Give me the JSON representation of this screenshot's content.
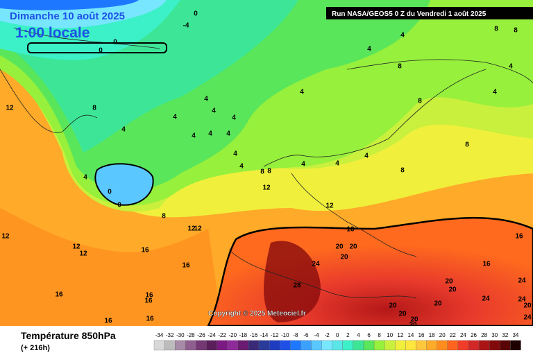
{
  "header": {
    "date": "Dimanche 10 août 2025",
    "time": "1:00 locale",
    "run": "Run NASA/GEOS5 0 Z du Vendredi 1 août 2025"
  },
  "copyright": "Copyright © 2025 Meteociel.fr",
  "footer": {
    "title": "Température 850hPa",
    "lead": "(+ 216h)"
  },
  "scale": [
    {
      "value": -34,
      "color": "#d8d8d8"
    },
    {
      "value": -32,
      "color": "#bcbcbc"
    },
    {
      "value": -30,
      "color": "#a78aa7"
    },
    {
      "value": -28,
      "color": "#8e5e8e"
    },
    {
      "value": -26,
      "color": "#743874"
    },
    {
      "value": -24,
      "color": "#5a1e5a"
    },
    {
      "value": -22,
      "color": "#7a1a82"
    },
    {
      "value": -20,
      "color": "#8e2a9a"
    },
    {
      "value": -18,
      "color": "#6a1a70"
    },
    {
      "value": -16,
      "color": "#3a2a78"
    },
    {
      "value": -14,
      "color": "#2a3a9a"
    },
    {
      "value": -12,
      "color": "#1e3cc0"
    },
    {
      "value": -10,
      "color": "#1e50e6"
    },
    {
      "value": -8,
      "color": "#1e78ff"
    },
    {
      "value": -6,
      "color": "#3ca0ff"
    },
    {
      "value": -4,
      "color": "#5ac8ff"
    },
    {
      "value": -2,
      "color": "#78e6ff"
    },
    {
      "value": 0,
      "color": "#5ae6e6"
    },
    {
      "value": 2,
      "color": "#3cf0c8"
    },
    {
      "value": 4,
      "color": "#3ce696"
    },
    {
      "value": 6,
      "color": "#5ae65a"
    },
    {
      "value": 8,
      "color": "#96f03c"
    },
    {
      "value": 10,
      "color": "#c8f03c"
    },
    {
      "value": 12,
      "color": "#f0f03c"
    },
    {
      "value": 14,
      "color": "#ffe63c"
    },
    {
      "value": 16,
      "color": "#ffc83c"
    },
    {
      "value": 18,
      "color": "#ffaa28"
    },
    {
      "value": 20,
      "color": "#ff8c1e"
    },
    {
      "value": 22,
      "color": "#ff641e"
    },
    {
      "value": 24,
      "color": "#f03c28"
    },
    {
      "value": 26,
      "color": "#d22828"
    },
    {
      "value": 28,
      "color": "#aa1414"
    },
    {
      "value": 30,
      "color": "#820a0a"
    },
    {
      "value": 32,
      "color": "#5a0505"
    },
    {
      "value": 34,
      "color": "#1e0000"
    }
  ],
  "map": {
    "contour_labels": [
      0,
      -4,
      0,
      0,
      8,
      8,
      4,
      4,
      8,
      4,
      4,
      8,
      12,
      8,
      4,
      4,
      4,
      4,
      4,
      4,
      4,
      4,
      4,
      4,
      8,
      8,
      4,
      4,
      4,
      4,
      8,
      8,
      4,
      0,
      0,
      12,
      12,
      8,
      12,
      12,
      12,
      16,
      12,
      12,
      16,
      20,
      20,
      20,
      16,
      24,
      16,
      16,
      28,
      24,
      20,
      20,
      24,
      24,
      16,
      16,
      16,
      20,
      20,
      20,
      20,
      20,
      20,
      16,
      16,
      24
    ]
  }
}
